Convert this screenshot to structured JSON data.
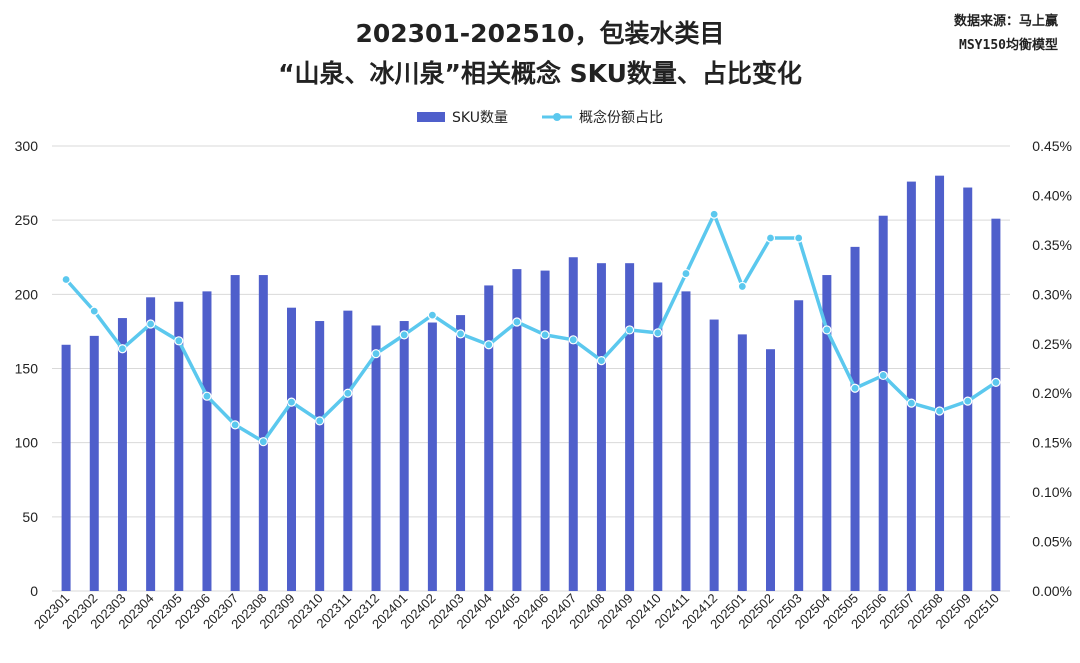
{
  "header": {
    "title_line1": "202301-202510，包装水类目",
    "title_line2": "“山泉、冰川泉”相关概念 SKU数量、占比变化",
    "source_line1": "数据来源：马上赢",
    "source_line2": "MSY150均衡模型"
  },
  "legend": {
    "bar_label": "SKU数量",
    "line_label": "概念份额占比"
  },
  "colors": {
    "bar": "#4F5FCB",
    "line": "#5BC8EE",
    "grid": "#D9D9D9"
  },
  "chart_data": {
    "type": "bar",
    "title": "202301-202510，包装水类目 “山泉、冰川泉”相关概念 SKU数量、占比变化",
    "categories": [
      "202301",
      "202302",
      "202303",
      "202304",
      "202305",
      "202306",
      "202307",
      "202308",
      "202309",
      "202310",
      "202311",
      "202312",
      "202401",
      "202402",
      "202403",
      "202404",
      "202405",
      "202406",
      "202407",
      "202408",
      "202409",
      "202410",
      "202411",
      "202412",
      "202501",
      "202502",
      "202503",
      "202504",
      "202505",
      "202506",
      "202507",
      "202508",
      "202509",
      "202510"
    ],
    "series": [
      {
        "name": "SKU数量",
        "type": "bar",
        "axis": "left",
        "values": [
          166,
          172,
          184,
          198,
          195,
          202,
          213,
          213,
          191,
          182,
          189,
          179,
          182,
          181,
          186,
          206,
          217,
          216,
          225,
          221,
          221,
          208,
          202,
          183,
          173,
          163,
          196,
          213,
          232,
          253,
          276,
          280,
          272,
          251
        ]
      },
      {
        "name": "概念份额占比",
        "type": "line",
        "axis": "right",
        "values": [
          0.00315,
          0.00283,
          0.00245,
          0.0027,
          0.00253,
          0.00197,
          0.00168,
          0.00151,
          0.00191,
          0.00172,
          0.002,
          0.0024,
          0.00259,
          0.00279,
          0.0026,
          0.00249,
          0.00272,
          0.00259,
          0.00254,
          0.00233,
          0.00264,
          0.00261,
          0.00321,
          0.00381,
          0.00308,
          0.00357,
          0.00357,
          0.00264,
          0.00205,
          0.00218,
          0.0019,
          0.00182,
          0.00192,
          0.00211
        ]
      }
    ],
    "y_left": {
      "min": 0,
      "max": 300,
      "ticks": [
        "0",
        "50",
        "100",
        "150",
        "200",
        "250",
        "300"
      ]
    },
    "y_right": {
      "min": 0,
      "max": 0.0045,
      "ticks": [
        "0.00%",
        "0.05%",
        "0.10%",
        "0.15%",
        "0.20%",
        "0.25%",
        "0.30%",
        "0.35%",
        "0.40%",
        "0.45%"
      ]
    },
    "grid": true,
    "legend_position": "top"
  }
}
